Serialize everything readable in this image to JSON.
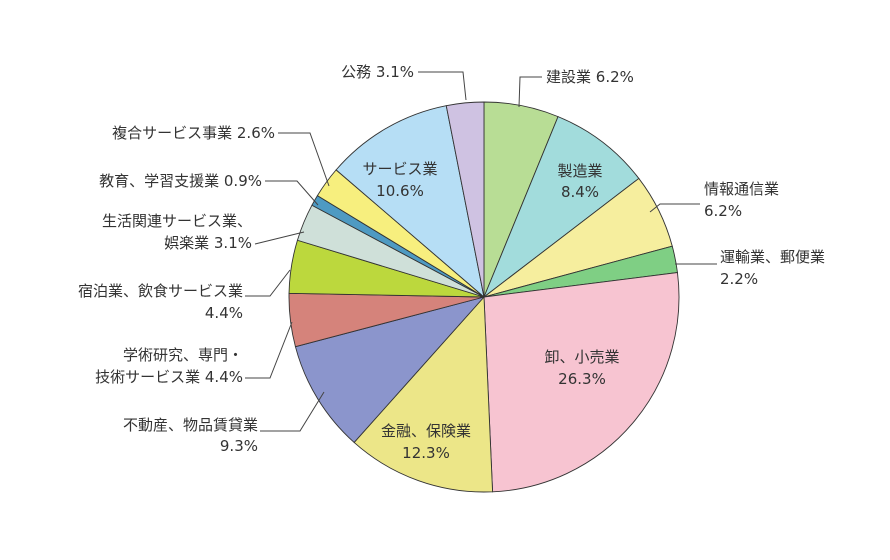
{
  "chart_data": {
    "type": "pie",
    "title": "",
    "start": "top",
    "direction": "clockwise",
    "slices": [
      {
        "label": "建設業",
        "value_text": "6.2%",
        "value": 6.2,
        "color": "#b8dd95"
      },
      {
        "label": "製造業",
        "value_text": "8.4%",
        "value": 8.4,
        "color": "#a2dcdc"
      },
      {
        "label": "情報通信業",
        "value_text": "6.2%",
        "value": 6.2,
        "color": "#f6ee9e"
      },
      {
        "label": "運輸業、郵便業",
        "value_text": "2.2%",
        "value": 2.2,
        "color": "#7fcf84"
      },
      {
        "label": "卸、小売業",
        "value_text": "26.3%",
        "value": 26.3,
        "color": "#f7c4d1"
      },
      {
        "label": "金融、保険業",
        "value_text": "12.3%",
        "value": 12.3,
        "color": "#ece688"
      },
      {
        "label": "不動産、物品賃貸業",
        "value_text": "9.3%",
        "value": 9.3,
        "color": "#8b95cc"
      },
      {
        "label": "学術研究、専門・技術サービス業",
        "value_text": "4.4%",
        "value": 4.4,
        "color": "#d5837b"
      },
      {
        "label": "宿泊業、飲食サービス業",
        "value_text": "4.4%",
        "value": 4.4,
        "color": "#bcd83d"
      },
      {
        "label": "生活関連サービス業、娯楽業",
        "value_text": "3.1%",
        "value": 3.1,
        "color": "#cfe0d9"
      },
      {
        "label": "教育、学習支援業",
        "value_text": "0.9%",
        "value": 0.9,
        "color": "#4e9ac2"
      },
      {
        "label": "複合サービス事業",
        "value_text": "2.6%",
        "value": 2.6,
        "color": "#f7ef7e"
      },
      {
        "label": "サービス業",
        "value_text": "10.6%",
        "value": 10.6,
        "color": "#b6def5"
      },
      {
        "label": "公務",
        "value_text": "3.1%",
        "value": 3.1,
        "color": "#cfc2e2"
      }
    ]
  }
}
